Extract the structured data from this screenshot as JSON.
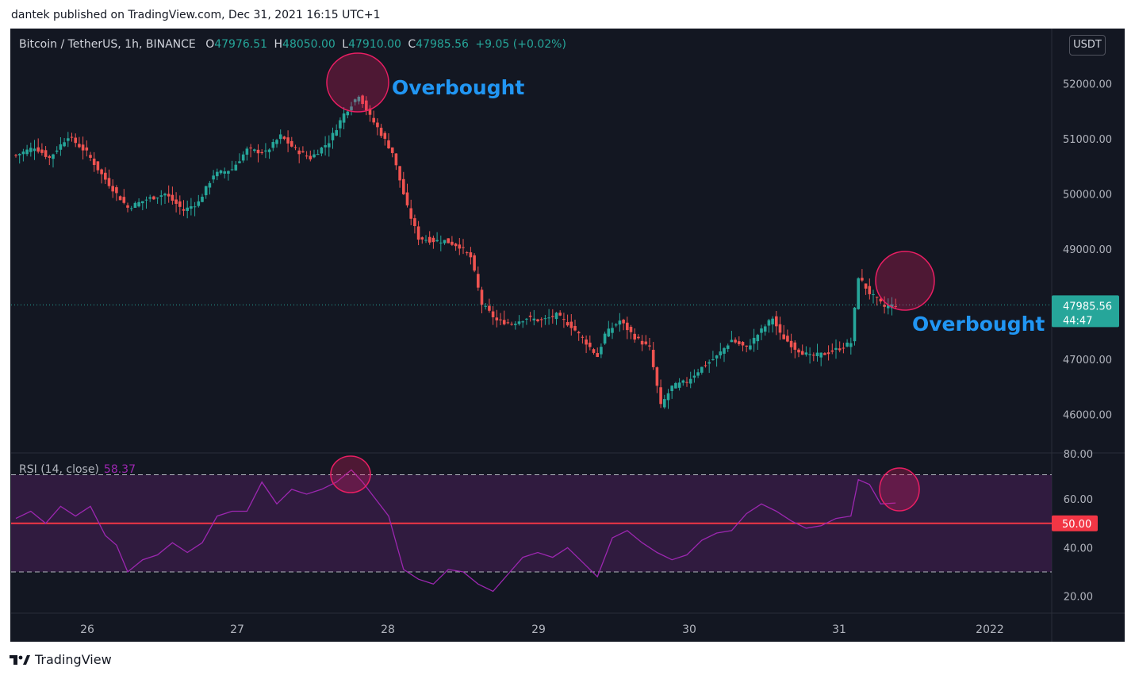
{
  "header": {
    "text": "dantek published on TradingView.com, Dec 31, 2021 16:15 UTC+1"
  },
  "legend": {
    "symbol": "Bitcoin / TetherUS, 1h, BINANCE",
    "o_label": "O",
    "o": "47976.51",
    "h_label": "H",
    "h": "48050.00",
    "l_label": "L",
    "l": "47910.00",
    "c_label": "C",
    "c": "47985.56",
    "change": "+9.05 (+0.02%)"
  },
  "currency_button": "USDT",
  "price_tag": {
    "price": "47985.56",
    "countdown": "44:47"
  },
  "rsi": {
    "label": "RSI (14, close)",
    "value": "58.37",
    "midline_tag": "50.00"
  },
  "brand": {
    "name": "TradingView",
    "icon": "tradingview-logo-icon"
  },
  "colors": {
    "up": "#26a69a",
    "down": "#ef5350",
    "rsi_line": "#9c27b0",
    "annotation_text": "#2196f3",
    "midline": "#f23645"
  },
  "chart_data": [
    {
      "type": "candlestick",
      "title": "Bitcoin / TetherUS, 1h, BINANCE",
      "x_ticks": [
        "26",
        "27",
        "28",
        "29",
        "30",
        "31",
        "2022"
      ],
      "y_ticks": [
        "52000.00",
        "51000.00",
        "50000.00",
        "49000.00",
        "48000.00",
        "47000.00",
        "46000.00"
      ],
      "y_tick_values": [
        52000,
        51000,
        50000,
        49000,
        48000,
        47000,
        46000
      ],
      "ylim": [
        45300,
        53000
      ],
      "last_price": 47985.56,
      "close_path": [
        [
          0,
          50700
        ],
        [
          5,
          50850
        ],
        [
          9,
          50650
        ],
        [
          14,
          51050
        ],
        [
          19,
          50750
        ],
        [
          23,
          50350
        ],
        [
          27,
          50000
        ],
        [
          30,
          49750
        ],
        [
          35,
          49900
        ],
        [
          40,
          50000
        ],
        [
          45,
          49700
        ],
        [
          49,
          49850
        ],
        [
          53,
          50350
        ],
        [
          58,
          50450
        ],
        [
          62,
          50800
        ],
        [
          67,
          50750
        ],
        [
          71,
          51050
        ],
        [
          75,
          50800
        ],
        [
          79,
          50650
        ],
        [
          84,
          50950
        ],
        [
          88,
          51450
        ],
        [
          92,
          51800
        ],
        [
          95,
          51400
        ],
        [
          97,
          51200
        ],
        [
          101,
          50750
        ],
        [
          105,
          49750
        ],
        [
          108,
          49200
        ],
        [
          112,
          49150
        ],
        [
          115,
          49150
        ],
        [
          119,
          49050
        ],
        [
          122,
          48850
        ],
        [
          125,
          48000
        ],
        [
          129,
          47700
        ],
        [
          133,
          47650
        ],
        [
          137,
          47750
        ],
        [
          141,
          47700
        ],
        [
          145,
          47800
        ],
        [
          149,
          47600
        ],
        [
          153,
          47300
        ],
        [
          156,
          47050
        ],
        [
          158,
          47450
        ],
        [
          162,
          47700
        ],
        [
          166,
          47400
        ],
        [
          170,
          47200
        ],
        [
          173,
          46150
        ],
        [
          176,
          46500
        ],
        [
          180,
          46600
        ],
        [
          184,
          46850
        ],
        [
          188,
          47050
        ],
        [
          192,
          47350
        ],
        [
          196,
          47200
        ],
        [
          199,
          47450
        ],
        [
          203,
          47750
        ],
        [
          205,
          47450
        ],
        [
          209,
          47200
        ],
        [
          213,
          47050
        ],
        [
          217,
          47100
        ],
        [
          221,
          47200
        ],
        [
          224,
          47300
        ],
        [
          226,
          48500
        ],
        [
          229,
          48200
        ],
        [
          233,
          47950
        ],
        [
          236,
          47986
        ]
      ],
      "annotations": [
        "Overbought",
        "Overbought"
      ]
    },
    {
      "type": "line",
      "title": "RSI (14, close)",
      "y_ticks": [
        "80.00",
        "60.00",
        "40.00",
        "20.00"
      ],
      "y_tick_values": [
        80,
        60,
        40,
        20
      ],
      "ylim": [
        13,
        79
      ],
      "band": [
        30,
        70
      ],
      "midline": 50,
      "last_value": 58.37,
      "values": [
        [
          0,
          52
        ],
        [
          4,
          55
        ],
        [
          8,
          50
        ],
        [
          12,
          57
        ],
        [
          16,
          53
        ],
        [
          20,
          57
        ],
        [
          24,
          45
        ],
        [
          27,
          41
        ],
        [
          30,
          30
        ],
        [
          34,
          35
        ],
        [
          38,
          37
        ],
        [
          42,
          42
        ],
        [
          46,
          38
        ],
        [
          50,
          42
        ],
        [
          54,
          53
        ],
        [
          58,
          55
        ],
        [
          62,
          55
        ],
        [
          66,
          67
        ],
        [
          70,
          58
        ],
        [
          74,
          64
        ],
        [
          78,
          62
        ],
        [
          82,
          64
        ],
        [
          86,
          67
        ],
        [
          90,
          72
        ],
        [
          93,
          67
        ],
        [
          96,
          61
        ],
        [
          100,
          53
        ],
        [
          104,
          31
        ],
        [
          108,
          27
        ],
        [
          112,
          25
        ],
        [
          116,
          31
        ],
        [
          120,
          30
        ],
        [
          124,
          25
        ],
        [
          128,
          22
        ],
        [
          132,
          29
        ],
        [
          136,
          36
        ],
        [
          140,
          38
        ],
        [
          144,
          36
        ],
        [
          148,
          40
        ],
        [
          152,
          34
        ],
        [
          156,
          28
        ],
        [
          160,
          44
        ],
        [
          164,
          47
        ],
        [
          168,
          42
        ],
        [
          172,
          38
        ],
        [
          176,
          35
        ],
        [
          180,
          37
        ],
        [
          184,
          43
        ],
        [
          188,
          46
        ],
        [
          192,
          47
        ],
        [
          196,
          54
        ],
        [
          200,
          58
        ],
        [
          204,
          55
        ],
        [
          208,
          51
        ],
        [
          212,
          48
        ],
        [
          216,
          49
        ],
        [
          220,
          52
        ],
        [
          224,
          53
        ],
        [
          226,
          68
        ],
        [
          229,
          66
        ],
        [
          232,
          58
        ],
        [
          236,
          58.37
        ]
      ]
    }
  ]
}
